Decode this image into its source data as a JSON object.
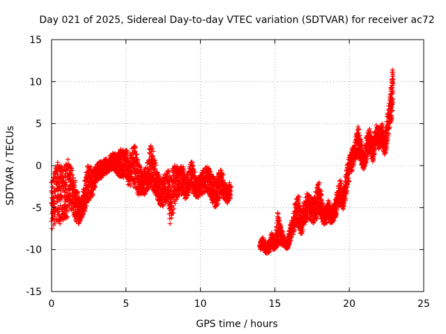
{
  "chart_data": {
    "type": "scatter",
    "title": "Day 021 of 2025, Sidereal Day-to-day VTEC variation (SDTVAR) for receiver ac72",
    "xlabel": "GPS time / hours",
    "ylabel": "SDTVAR / TECUs",
    "xlim": [
      0,
      25
    ],
    "ylim": [
      -15,
      15
    ],
    "x_ticks": [
      0,
      5,
      10,
      15,
      20,
      25
    ],
    "y_ticks": [
      -15,
      -10,
      -5,
      0,
      5,
      10,
      15
    ],
    "x_tick_labels": [
      "0",
      "5",
      "10",
      "15",
      "20",
      "25"
    ],
    "y_tick_labels": [
      "-15",
      "-10",
      "-5",
      "0",
      "5",
      "10",
      "15"
    ],
    "grid": true,
    "marker": "plus",
    "color": "#ff0000",
    "series": [
      {
        "name": "SDTVAR",
        "x": [
          0.0,
          0.2,
          0.4,
          0.6,
          0.8,
          1.0,
          1.2,
          1.4,
          1.6,
          1.8,
          2.0,
          2.2,
          2.4,
          2.6,
          2.8,
          3.0,
          3.2,
          3.4,
          3.6,
          3.8,
          4.0,
          4.2,
          4.4,
          4.6,
          4.8,
          5.0,
          5.2,
          5.4,
          5.6,
          5.8,
          6.0,
          6.2,
          6.4,
          6.6,
          6.8,
          7.0,
          7.2,
          7.4,
          7.6,
          7.8,
          8.0,
          8.2,
          8.4,
          8.6,
          8.8,
          9.0,
          9.2,
          9.4,
          9.6,
          9.8,
          10.0,
          10.2,
          10.4,
          10.6,
          10.8,
          11.0,
          11.2,
          11.4,
          11.6,
          11.8,
          12.0,
          14.0,
          14.2,
          14.4,
          14.6,
          14.8,
          15.0,
          15.2,
          15.4,
          15.6,
          15.8,
          16.0,
          16.2,
          16.4,
          16.6,
          16.8,
          17.0,
          17.2,
          17.4,
          17.6,
          17.8,
          18.0,
          18.2,
          18.4,
          18.6,
          18.8,
          19.0,
          19.2,
          19.4,
          19.6,
          19.8,
          20.0,
          20.2,
          20.4,
          20.6,
          20.8,
          21.0,
          21.2,
          21.4,
          21.6,
          21.8,
          22.0,
          22.2,
          22.4,
          22.6,
          22.8,
          22.9
        ],
        "y": [
          -3.0,
          -2.0,
          -1.0,
          -1.5,
          -0.5,
          -0.5,
          -2.5,
          -3.5,
          -4.5,
          -5.5,
          -6.0,
          -4.5,
          -2.5,
          -1.5,
          -2.5,
          -1.5,
          -0.5,
          -0.5,
          0.0,
          -0.5,
          0.5,
          0.5,
          0.5,
          1.0,
          1.0,
          1.0,
          -0.5,
          0.0,
          -1.0,
          -1.5,
          -2.5,
          -2.0,
          -1.5,
          -1.0,
          -1.5,
          -2.0,
          -2.5,
          -3.0,
          -2.5,
          -2.0,
          -3.0,
          -2.0,
          -1.5,
          -2.0,
          -1.0,
          -3.0,
          -2.0,
          -1.0,
          -2.0,
          -3.0,
          -2.5,
          -2.0,
          -1.5,
          -2.0,
          -2.5,
          -3.0,
          -2.5,
          -1.5,
          -3.0,
          -3.5,
          -3.0,
          -9.5,
          -9.0,
          -10.0,
          -9.5,
          -9.0,
          -9.5,
          -8.0,
          -8.5,
          -9.0,
          -9.5,
          -8.5,
          -7.5,
          -5.5,
          -5.0,
          -7.0,
          -5.5,
          -4.5,
          -5.0,
          -5.5,
          -4.0,
          -3.0,
          -5.5,
          -6.0,
          -5.0,
          -6.0,
          -5.5,
          -4.5,
          -3.0,
          -4.5,
          -2.0,
          0.0,
          1.0,
          2.0,
          3.0,
          1.5,
          0.0,
          2.5,
          3.0,
          2.0,
          4.0,
          3.5,
          4.0,
          2.0,
          4.5,
          7.0,
          10.0
        ],
        "band_low": [
          -8.0,
          -7.0,
          -6.5,
          -7.0,
          -6.5,
          -6.5,
          -5.0,
          -5.5,
          -6.5,
          -7.0,
          -6.5,
          -5.5,
          -4.5,
          -4.0,
          -3.5,
          -2.0,
          -1.5,
          -1.5,
          -1.0,
          -1.0,
          -0.5,
          -0.5,
          -1.0,
          -1.5,
          -1.5,
          -1.5,
          -2.5,
          -2.5,
          -3.0,
          -3.5,
          -3.5,
          -3.5,
          -3.0,
          -2.5,
          -3.0,
          -3.5,
          -4.5,
          -5.0,
          -4.5,
          -4.0,
          -7.5,
          -5.5,
          -4.0,
          -3.5,
          -3.5,
          -4.0,
          -3.5,
          -3.0,
          -3.5,
          -4.0,
          -3.5,
          -3.5,
          -3.0,
          -3.5,
          -4.5,
          -5.0,
          -4.5,
          -3.5,
          -4.0,
          -4.5,
          -4.0,
          -10.0,
          -10.0,
          -10.5,
          -10.5,
          -10.0,
          -10.0,
          -9.5,
          -9.5,
          -9.5,
          -10.0,
          -9.5,
          -8.5,
          -7.0,
          -7.5,
          -8.5,
          -7.0,
          -6.5,
          -6.5,
          -7.0,
          -6.5,
          -5.5,
          -7.0,
          -7.0,
          -6.5,
          -7.0,
          -6.5,
          -5.5,
          -4.5,
          -5.5,
          -3.5,
          -1.5,
          -0.5,
          0.5,
          1.5,
          0.0,
          -0.5,
          1.0,
          1.5,
          0.5,
          2.5,
          2.0,
          2.5,
          1.0,
          3.0,
          5.0,
          7.0
        ],
        "band_high": [
          -1.5,
          -0.5,
          0.5,
          0.0,
          0.0,
          0.5,
          1.5,
          -1.0,
          -2.0,
          -3.5,
          -4.0,
          -2.0,
          0.0,
          0.0,
          -0.5,
          0.0,
          0.5,
          0.5,
          1.0,
          0.5,
          1.5,
          1.5,
          1.5,
          2.0,
          2.0,
          2.0,
          1.0,
          2.0,
          2.5,
          1.0,
          -0.5,
          -0.5,
          0.0,
          2.5,
          2.0,
          0.0,
          -1.0,
          -1.5,
          -1.0,
          -0.5,
          -1.0,
          0.0,
          0.0,
          -0.5,
          0.5,
          -1.5,
          -0.5,
          0.5,
          -0.5,
          -1.5,
          -1.0,
          -0.5,
          0.0,
          -0.5,
          -1.0,
          -1.5,
          -1.0,
          0.0,
          -2.0,
          -2.5,
          -2.0,
          -9.0,
          -8.5,
          -9.5,
          -9.0,
          -8.0,
          -8.5,
          -5.5,
          -7.0,
          -8.5,
          -9.0,
          -7.5,
          -6.0,
          -4.0,
          -3.5,
          -5.5,
          -4.0,
          -3.0,
          -3.5,
          -4.0,
          -2.5,
          -2.0,
          -4.5,
          -5.0,
          -4.0,
          -5.0,
          -4.5,
          -3.0,
          -1.5,
          -3.5,
          -0.5,
          1.0,
          2.0,
          3.0,
          5.0,
          3.0,
          1.0,
          4.0,
          4.5,
          3.0,
          5.0,
          4.5,
          5.0,
          3.5,
          6.5,
          9.0,
          11.5
        ]
      }
    ]
  }
}
